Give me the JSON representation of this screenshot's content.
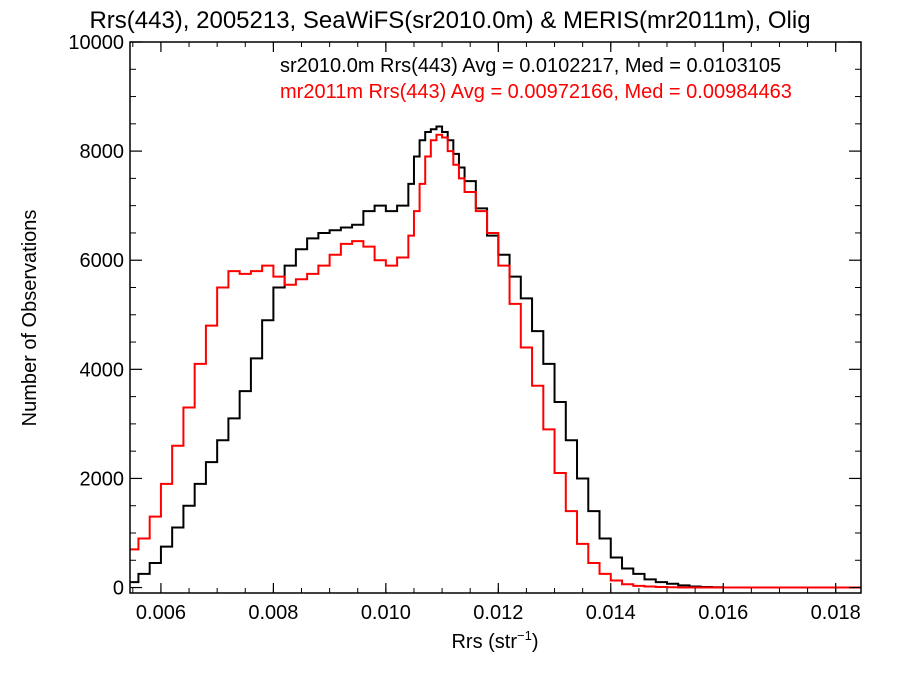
{
  "chart_data": {
    "type": "line",
    "title": "Rrs(443), 2005213, SeaWiFS(sr2010.0m) & MERIS(mr2011m), Olig",
    "xlabel_main": "Rrs (str",
    "xlabel_sup": "−1",
    "xlabel_end": ")",
    "ylabel": "Number of Observations",
    "xlim": [
      0.00545,
      0.01845
    ],
    "ylim": [
      -100,
      10000
    ],
    "x_ticks": [
      0.006,
      0.008,
      0.01,
      0.012,
      0.014,
      0.016,
      0.018
    ],
    "x_tick_labels": [
      "0.006",
      "0.008",
      "0.010",
      "0.012",
      "0.014",
      "0.016",
      "0.018"
    ],
    "y_ticks": [
      0,
      2000,
      4000,
      6000,
      8000,
      10000
    ],
    "y_tick_labels": [
      "0",
      "2000",
      "4000",
      "6000",
      "8000",
      "10000"
    ],
    "step_histogram": true,
    "series": [
      {
        "name": "sr2010.0m",
        "legend": "sr2010.0m Rrs(443) Avg = 0.0102217, Med = 0.0103105",
        "color": "#000000",
        "x": [
          0.00545,
          0.0056,
          0.0058,
          0.006,
          0.0062,
          0.0064,
          0.0066,
          0.0068,
          0.007,
          0.0072,
          0.0074,
          0.0076,
          0.0078,
          0.008,
          0.0082,
          0.0084,
          0.0086,
          0.0088,
          0.009,
          0.0092,
          0.0094,
          0.0096,
          0.0098,
          0.01,
          0.0102,
          0.0104,
          0.0105,
          0.0106,
          0.0107,
          0.0108,
          0.0109,
          0.011,
          0.0111,
          0.0112,
          0.0113,
          0.0114,
          0.0116,
          0.0118,
          0.012,
          0.0122,
          0.0124,
          0.0126,
          0.0128,
          0.013,
          0.0132,
          0.0134,
          0.0136,
          0.0138,
          0.014,
          0.0142,
          0.0144,
          0.0146,
          0.0148,
          0.015,
          0.0152,
          0.0154,
          0.0156,
          0.0158,
          0.016,
          0.017,
          0.018,
          0.01845
        ],
        "y": [
          100,
          250,
          450,
          750,
          1100,
          1500,
          1900,
          2300,
          2700,
          3100,
          3600,
          4200,
          4900,
          5500,
          5900,
          6200,
          6400,
          6500,
          6550,
          6600,
          6650,
          6900,
          7000,
          6900,
          7000,
          7400,
          7900,
          8200,
          8350,
          8400,
          8450,
          8350,
          8200,
          7950,
          7700,
          7450,
          6950,
          6450,
          6100,
          5700,
          5300,
          4700,
          4100,
          3400,
          2700,
          2000,
          1400,
          900,
          550,
          350,
          250,
          150,
          100,
          70,
          40,
          20,
          10,
          5,
          0,
          0,
          0,
          0
        ]
      },
      {
        "name": "mr2011m",
        "legend": "mr2011m Rrs(443) Avg = 0.00972166, Med = 0.00984463",
        "color": "#ff0000",
        "x": [
          0.00545,
          0.0056,
          0.0058,
          0.006,
          0.0062,
          0.0064,
          0.0066,
          0.0068,
          0.007,
          0.0072,
          0.0074,
          0.0076,
          0.0078,
          0.008,
          0.0082,
          0.0084,
          0.0086,
          0.0088,
          0.009,
          0.0092,
          0.0094,
          0.0096,
          0.0098,
          0.01,
          0.0102,
          0.0104,
          0.0105,
          0.0106,
          0.0107,
          0.0108,
          0.0109,
          0.011,
          0.0111,
          0.0112,
          0.0113,
          0.0114,
          0.0116,
          0.0118,
          0.012,
          0.0122,
          0.0124,
          0.0126,
          0.0128,
          0.013,
          0.0132,
          0.0134,
          0.0136,
          0.0138,
          0.014,
          0.0142,
          0.0144,
          0.0146,
          0.0148,
          0.015,
          0.0152,
          0.0154,
          0.0156,
          0.0158,
          0.016,
          0.017,
          0.018,
          0.01845
        ],
        "y": [
          700,
          900,
          1300,
          1900,
          2600,
          3300,
          4100,
          4800,
          5500,
          5800,
          5750,
          5800,
          5900,
          5700,
          5550,
          5650,
          5750,
          5900,
          6100,
          6300,
          6350,
          6250,
          6000,
          5900,
          6050,
          6450,
          6900,
          7400,
          7900,
          8200,
          8300,
          8250,
          8000,
          7750,
          7500,
          7250,
          6900,
          6500,
          5900,
          5200,
          4400,
          3700,
          2900,
          2100,
          1400,
          800,
          450,
          250,
          130,
          60,
          30,
          20,
          10,
          5,
          0,
          0,
          0,
          0,
          0,
          0,
          0,
          0
        ]
      }
    ]
  }
}
